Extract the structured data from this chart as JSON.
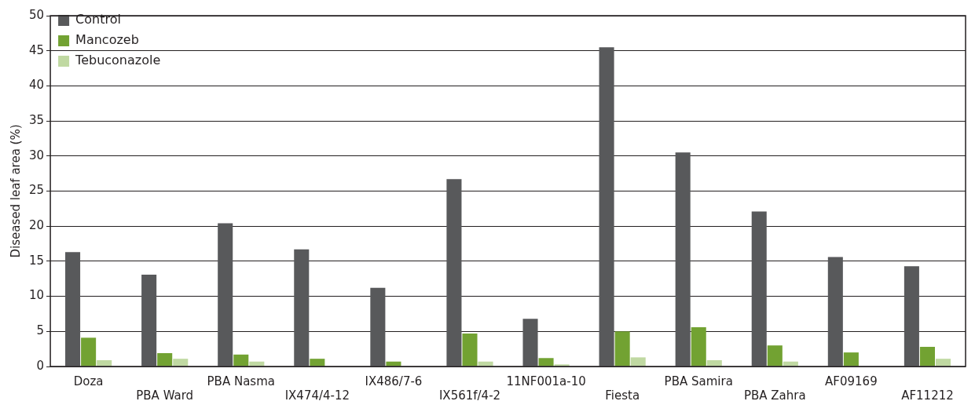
{
  "chart_data": {
    "type": "bar",
    "ylabel": "Diseased leaf area (%)",
    "categories": [
      "Doza",
      "PBA Ward",
      "PBA Nasma",
      "IX474/4-12",
      "IX486/7-6",
      "IX561f/4-2",
      "11NF001a-10",
      "Fiesta",
      "PBA Samira",
      "PBA Zahra",
      "AF09169",
      "AF11212"
    ],
    "series": [
      {
        "name": "Control",
        "color": "#58595b",
        "values": [
          16.3,
          13.1,
          20.4,
          16.7,
          11.2,
          26.7,
          6.8,
          45.5,
          30.5,
          22.1,
          15.6,
          14.3
        ]
      },
      {
        "name": "Mancozeb",
        "color": "#72a232",
        "values": [
          4.1,
          1.9,
          1.7,
          1.1,
          0.7,
          4.7,
          1.2,
          5.0,
          5.6,
          3.0,
          2.0,
          2.8
        ]
      },
      {
        "name": "Tebuconazole",
        "color": "#c0d9a2",
        "values": [
          0.9,
          1.1,
          0.7,
          0,
          0,
          0.7,
          0.3,
          1.3,
          0.9,
          0.7,
          0,
          1.1
        ]
      }
    ],
    "ylim": [
      0,
      50
    ],
    "yticks": [
      0,
      5,
      10,
      15,
      20,
      25,
      30,
      35,
      40,
      45,
      50
    ],
    "grid": "y",
    "legend": "top left"
  }
}
